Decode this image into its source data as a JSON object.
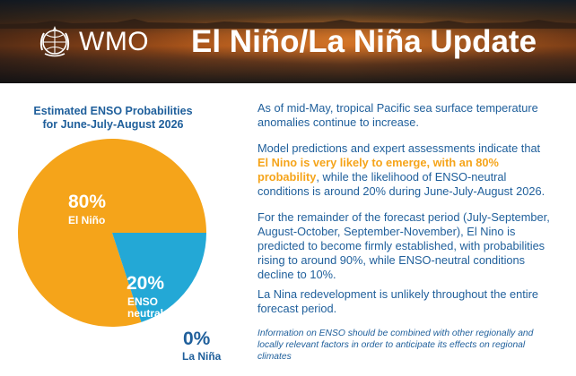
{
  "banner": {
    "logo_text": "WMO",
    "title": "El Niño/La Niña Update"
  },
  "chart_data": {
    "type": "pie",
    "title": "Estimated ENSO Probabilities for June-July-August 2026",
    "title_lines": [
      "Estimated ENSO Probabilities",
      "for June-July-August 2026"
    ],
    "slices": [
      {
        "label": "El Niño",
        "value": 80,
        "value_label": "80%",
        "color": "#f5a41a"
      },
      {
        "label": "ENSO neutral",
        "label_lines": [
          "ENSO",
          "neutral"
        ],
        "value": 20,
        "value_label": "20%",
        "color": "#23a8d6"
      },
      {
        "label": "La Niña",
        "value": 0,
        "value_label": "0%",
        "color": "#1f5f9b"
      }
    ]
  },
  "text": {
    "p1": "As of mid-May, tropical Pacific sea surface temperature anomalies continue to increase.",
    "p2_before": "Model predictions and expert assessments indicate that ",
    "p2_highlight": "El Nino is very likely to emerge, with an 80% probability",
    "p2_after": ", while the likelihood of ENSO-neutral conditions is around 20% during June-July-August 2026.",
    "p3": "For the remainder of the forecast period (July-September, August-October, September-November), El Nino is predicted to become firmly established, with probabilities rising to around 90%, while ENSO-neutral conditions decline to 10%.",
    "p4": "La Nina redevelopment is unlikely throughout the entire forecast period.",
    "note": "Information on ENSO should be combined with other regionally and locally relevant factors in order to anticipate its effects on regional climates"
  }
}
